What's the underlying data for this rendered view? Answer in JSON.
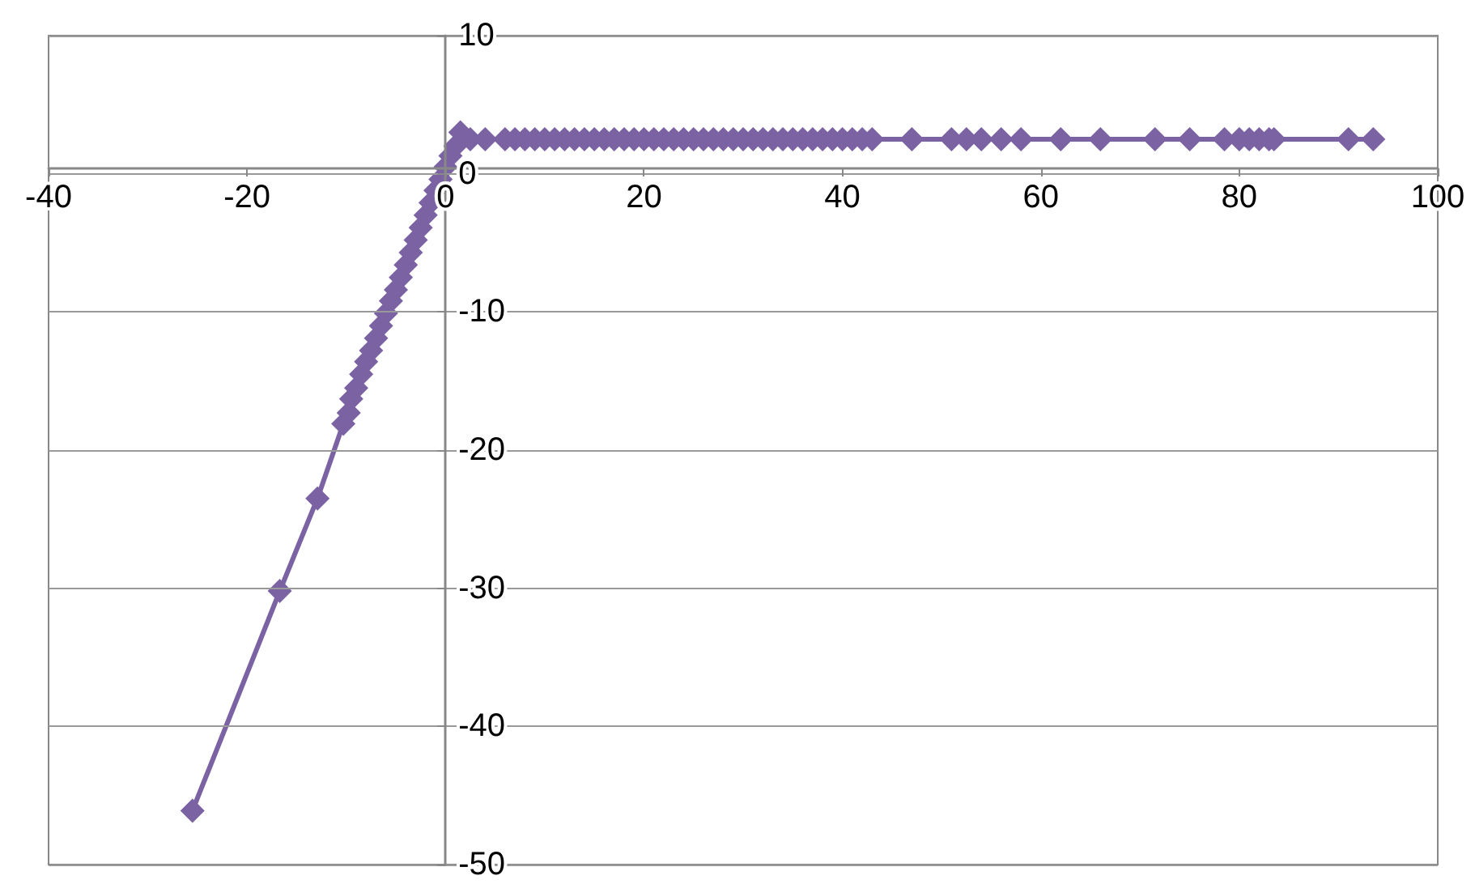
{
  "chart_data": {
    "type": "line",
    "marker": "diamond",
    "grid": "y",
    "line_style": "solid",
    "xlim": [
      -40,
      100
    ],
    "xticks": [
      -40,
      -20,
      0,
      20,
      40,
      60,
      80,
      100
    ],
    "ylim": [
      -50,
      10
    ],
    "yticks": [
      -50,
      -40,
      -30,
      -20,
      -10,
      0,
      10
    ],
    "series": [
      {
        "color": "#7b62a3",
        "x": [
          -25.5,
          -16.7,
          -12.9,
          -10.3,
          -9.75,
          -9.5,
          -9,
          -8.5,
          -8,
          -7.5,
          -7,
          -6.5,
          -6,
          -5.5,
          -5,
          -4.5,
          -4,
          -3.5,
          -3,
          -2.5,
          -2,
          -1.5,
          -1,
          -0.5,
          0,
          0.5,
          1,
          1.5,
          2.5,
          4,
          6,
          7,
          8,
          9,
          10,
          11,
          12,
          13,
          14,
          15,
          16,
          17,
          18,
          19,
          20,
          21,
          22,
          23,
          24,
          25,
          26,
          27,
          28,
          29,
          30,
          31,
          32,
          33,
          34,
          35,
          36,
          37,
          38,
          39,
          40,
          41,
          42,
          43,
          47,
          51,
          52.5,
          54,
          56,
          58,
          62,
          66,
          71.5,
          75,
          78.5,
          80,
          81,
          82,
          83,
          83.5,
          91,
          93.5
        ],
        "values": [
          -46.1,
          -30.2,
          -23.5,
          -18.1,
          -17.3,
          -16.3,
          -15.5,
          -14.5,
          -13.6,
          -12.8,
          -11.9,
          -11,
          -10.1,
          -9.2,
          -8.4,
          -7.5,
          -6.6,
          -5.7,
          -4.8,
          -3.9,
          -3,
          -2.1,
          -1.2,
          -0.4,
          0.5,
          1.3,
          2,
          3,
          2.5,
          2.5,
          2.5,
          2.5,
          2.5,
          2.5,
          2.5,
          2.5,
          2.5,
          2.5,
          2.5,
          2.5,
          2.5,
          2.5,
          2.5,
          2.5,
          2.5,
          2.5,
          2.5,
          2.5,
          2.5,
          2.5,
          2.5,
          2.5,
          2.5,
          2.5,
          2.5,
          2.5,
          2.5,
          2.5,
          2.5,
          2.5,
          2.5,
          2.5,
          2.5,
          2.5,
          2.5,
          2.5,
          2.5,
          2.5,
          2.5,
          2.5,
          2.5,
          2.5,
          2.5,
          2.5,
          2.5,
          2.5,
          2.5,
          2.5,
          2.5,
          2.5,
          2.5,
          2.5,
          2.5,
          2.5,
          2.5,
          2.5
        ]
      }
    ]
  }
}
